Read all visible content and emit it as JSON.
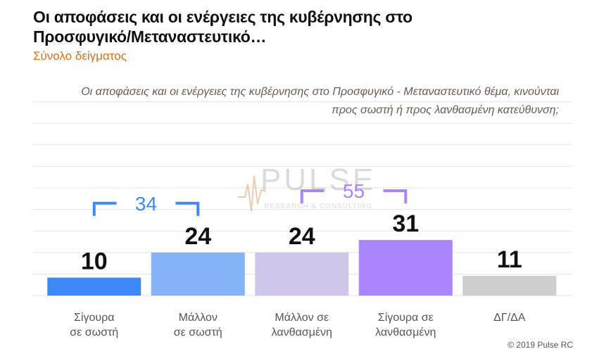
{
  "title": "Οι αποφάσεις και οι ενέργειες της κυβέρνησης στο Προσφυγικό/Μεταναστευτικό…",
  "subtitle": "Σύνολο δείγματος",
  "question": "Οι αποφάσεις και οι ενέργειες της κυβέρνησης στο Προσφυγικό - Μεταναστευτικό θέμα, κινούνται προς σωστή ή προς λανθασμένη κατεύθυνση;",
  "watermark": {
    "brand": "PULSE",
    "tagline": "RESEARCH & CONSULTING"
  },
  "credit": "© 2019 Pulse RC",
  "chart_data": {
    "type": "bar",
    "categories": [
      [
        "Σίγουρα",
        "σε σωστή"
      ],
      [
        "Μάλλον",
        "σε σωστή"
      ],
      [
        "Μάλλον σε",
        "λανθασμένη"
      ],
      [
        "Σίγουρα σε",
        "λανθασμένη"
      ],
      [
        "ΔΓ/ΔΑ"
      ]
    ],
    "values": [
      10,
      24,
      24,
      31,
      11
    ],
    "colors": [
      "#3d8af7",
      "#84b4f7",
      "#cfc7e9",
      "#ab85fb",
      "#cfcfcf"
    ],
    "ylim": [
      0,
      60
    ],
    "grid": true,
    "groups": [
      {
        "label": "34",
        "from": 0,
        "to": 1,
        "color": "#3d8af7"
      },
      {
        "label": "55",
        "from": 2,
        "to": 3,
        "color": "#ab85fb"
      }
    ]
  }
}
